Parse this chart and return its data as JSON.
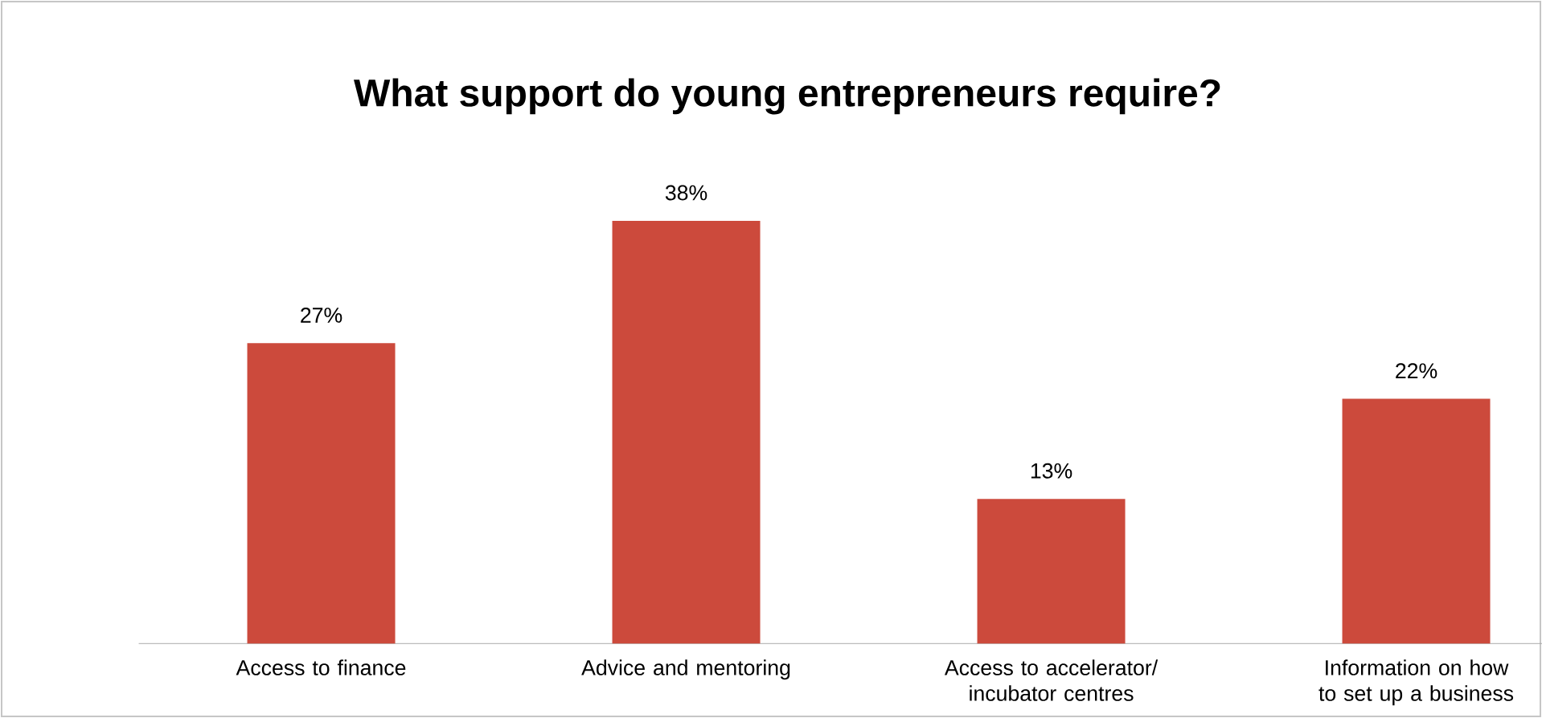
{
  "chart_data": {
    "type": "bar",
    "title": "What support do young entrepreneurs require?",
    "categories": [
      "Access to finance",
      "Advice and mentoring",
      "Access to accelerator/ incubator centres",
      "Information on how to set up a business"
    ],
    "values": [
      27,
      38,
      13,
      22
    ],
    "value_labels": [
      "27%",
      "38%",
      "13%",
      "22%"
    ],
    "color": "#cc4a3c"
  }
}
